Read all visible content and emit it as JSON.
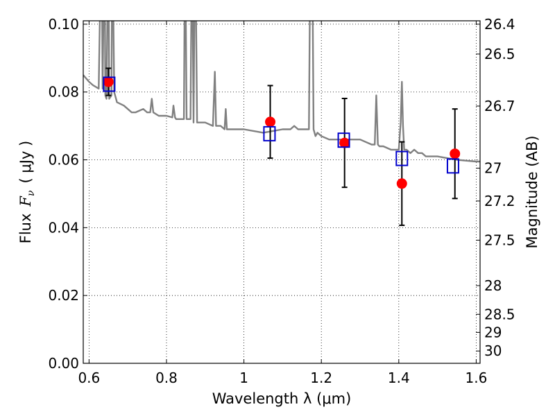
{
  "chart_data": {
    "type": "scatter",
    "xlabel": "Wavelength  λ (μm)",
    "ylabel": {
      "prefix": "Flux",
      "math": "F",
      "sub": "ν",
      "unit": "( μJy )"
    },
    "right_ylabel": "Magnitude (AB)",
    "xlim": [
      0.585,
      1.61
    ],
    "ylim": [
      0.0,
      0.101
    ],
    "x_ticks": [
      0.6,
      0.8,
      1.0,
      1.2,
      1.4,
      1.6
    ],
    "x_tick_labels": [
      "0.6",
      "0.8",
      "1",
      "1.2",
      "1.4",
      "1.6"
    ],
    "y_ticks": [
      0.0,
      0.02,
      0.04,
      0.06,
      0.08,
      0.1
    ],
    "y_tick_labels": [
      "0.00",
      "0.02",
      "0.04",
      "0.06",
      "0.08",
      "0.10"
    ],
    "right_ticks": [
      {
        "mag": 26.4,
        "label": "26.4"
      },
      {
        "mag": 26.5,
        "label": "26.5"
      },
      {
        "mag": 26.7,
        "label": "26.7"
      },
      {
        "mag": 27.0,
        "label": "27"
      },
      {
        "mag": 27.2,
        "label": "27.2"
      },
      {
        "mag": 27.5,
        "label": "27.5"
      },
      {
        "mag": 28.0,
        "label": "28"
      },
      {
        "mag": 28.5,
        "label": "28.5"
      },
      {
        "mag": 29.0,
        "label": "29"
      },
      {
        "mag": 30.0,
        "label": "30"
      }
    ],
    "grid": true,
    "grid_style": "dotted",
    "series": [
      {
        "kind": "spectrum_line",
        "color": "#808080",
        "x": [
          0.585,
          0.6,
          0.61,
          0.625,
          0.632,
          0.635,
          0.64,
          0.642,
          0.645,
          0.65,
          0.652,
          0.658,
          0.66,
          0.665,
          0.672,
          0.69,
          0.7,
          0.71,
          0.72,
          0.73,
          0.74,
          0.75,
          0.758,
          0.762,
          0.766,
          0.78,
          0.8,
          0.815,
          0.818,
          0.822,
          0.825,
          0.84,
          0.845,
          0.848,
          0.852,
          0.856,
          0.862,
          0.866,
          0.87,
          0.874,
          0.879,
          0.884,
          0.9,
          0.92,
          0.925,
          0.928,
          0.931,
          0.94,
          0.95,
          0.953,
          0.956,
          0.97,
          1.0,
          1.05,
          1.1,
          1.12,
          1.13,
          1.14,
          1.15,
          1.16,
          1.168,
          1.172,
          1.176,
          1.18,
          1.185,
          1.19,
          1.2,
          1.22,
          1.25,
          1.28,
          1.3,
          1.33,
          1.338,
          1.342,
          1.346,
          1.35,
          1.36,
          1.38,
          1.4,
          1.405,
          1.408,
          1.411,
          1.414,
          1.42,
          1.43,
          1.44,
          1.45,
          1.46,
          1.47,
          1.5,
          1.55,
          1.6,
          1.61
        ],
        "y": [
          0.085,
          0.083,
          0.082,
          0.081,
          0.13,
          0.081,
          0.13,
          0.079,
          0.078,
          0.13,
          0.078,
          0.079,
          0.13,
          0.08,
          0.077,
          0.076,
          0.075,
          0.074,
          0.074,
          0.0745,
          0.075,
          0.074,
          0.074,
          0.078,
          0.074,
          0.073,
          0.073,
          0.0725,
          0.076,
          0.0725,
          0.072,
          0.072,
          0.072,
          0.13,
          0.072,
          0.072,
          0.072,
          0.13,
          0.071,
          0.13,
          0.071,
          0.071,
          0.071,
          0.07,
          0.086,
          0.07,
          0.07,
          0.07,
          0.069,
          0.075,
          0.069,
          0.069,
          0.069,
          0.068,
          0.069,
          0.069,
          0.07,
          0.069,
          0.069,
          0.069,
          0.069,
          0.13,
          0.13,
          0.069,
          0.067,
          0.068,
          0.067,
          0.066,
          0.066,
          0.066,
          0.066,
          0.0645,
          0.0645,
          0.079,
          0.0645,
          0.064,
          0.064,
          0.063,
          0.063,
          0.071,
          0.083,
          0.07,
          0.063,
          0.063,
          0.062,
          0.063,
          0.062,
          0.062,
          0.061,
          0.061,
          0.06,
          0.0595,
          0.0595
        ]
      },
      {
        "kind": "observed_points",
        "color": "#ff0000",
        "marker": "circle",
        "x": [
          0.65,
          1.068,
          1.26,
          1.408,
          1.545
        ],
        "y": [
          0.083,
          0.0712,
          0.065,
          0.053,
          0.0618
        ],
        "yerr": [
          0.004,
          0.0107,
          0.0131,
          0.0123,
          0.0132
        ]
      },
      {
        "kind": "model_points",
        "color": "#0000cc",
        "marker": "open_square",
        "x": [
          0.652,
          1.066,
          1.258,
          1.408,
          1.54
        ],
        "y": [
          0.0823,
          0.0677,
          0.0658,
          0.0604,
          0.0582
        ]
      }
    ]
  }
}
